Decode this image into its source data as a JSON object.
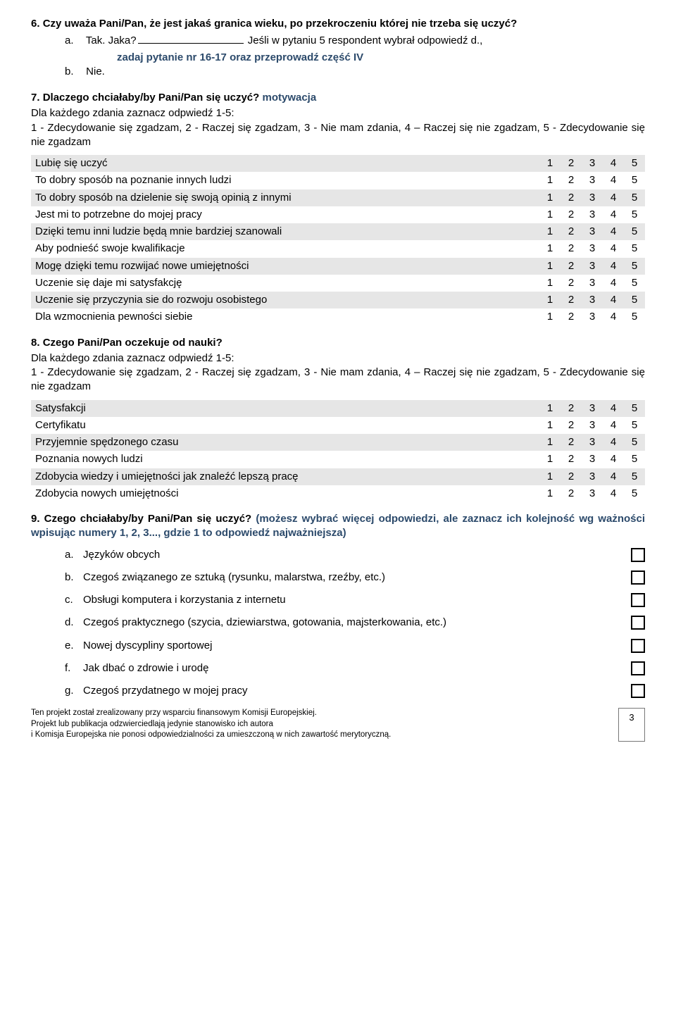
{
  "q6": {
    "num": "6.",
    "text_bold": "Czy uważa Pani/Pan, że jest jakaś granica wieku, po przekroczeniu której nie trzeba się uczyć?",
    "a_letter": "a.",
    "a_text": "Tak. Jaka?",
    "a_accent": " Jeśli w pytaniu 5 respondent wybrał odpowiedź d.,",
    "a_accent2": "zadaj pytanie nr 16-17 oraz przeprowadź część IV",
    "b_letter": "b.",
    "b_text": "Nie."
  },
  "q7": {
    "num": "7.",
    "title": "Dlaczego chciałaby/by Pani/Pan się uczyć?",
    "mot": "motywacja",
    "instr1": "Dla każdego zdania zaznacz odpwiedź 1-5:",
    "instr2": "1 - Zdecydowanie się zgadzam, 2 - Raczej się zgadzam,  3 - Nie mam zdania, 4 – Raczej się nie zgadzam, 5 - Zdecydowanie się nie zgadzam",
    "scale": [
      "1",
      "2",
      "3",
      "4",
      "5"
    ],
    "rows": [
      {
        "label": "Lubię się uczyć",
        "shaded": true
      },
      {
        "label": "To dobry sposób na poznanie innych ludzi",
        "shaded": false
      },
      {
        "label": "To dobry sposób na dzielenie się swoją opinią z innymi",
        "shaded": true
      },
      {
        "label": "Jest mi to potrzebne do mojej pracy",
        "shaded": false
      },
      {
        "label": "Dzięki temu inni ludzie będą mnie bardziej szanowali",
        "shaded": true
      },
      {
        "label": "Aby podnieść swoje kwalifikacje",
        "shaded": false
      },
      {
        "label": "Mogę dzięki temu rozwijać nowe umiejętności",
        "shaded": true
      },
      {
        "label": "Uczenie się daje mi satysfakcję",
        "shaded": false
      },
      {
        "label": "Uczenie się przyczynia sie do rozwoju osobistego",
        "shaded": true
      },
      {
        "label": "Dla wzmocnienia pewności siebie",
        "shaded": false
      }
    ],
    "colors": {
      "shaded_bg": "#e6e6e6"
    }
  },
  "q8": {
    "num": "8.",
    "title": "Czego Pani/Pan oczekuje od nauki?",
    "instr1": "Dla każdego zdania zaznacz odpwiedź 1-5:",
    "instr2": "1 - Zdecydowanie się zgadzam, 2 - Raczej się zgadzam,  3 - Nie mam zdania, 4 – Raczej się nie zgadzam, 5 - Zdecydowanie się nie zgadzam",
    "scale": [
      "1",
      "2",
      "3",
      "4",
      "5"
    ],
    "rows": [
      {
        "label": "Satysfakcji",
        "shaded": true
      },
      {
        "label": "Certyfikatu",
        "shaded": false
      },
      {
        "label": "Przyjemnie spędzonego czasu",
        "shaded": true
      },
      {
        "label": "Poznania nowych ludzi",
        "shaded": false
      },
      {
        "label": "Zdobycia wiedzy i umiejętności jak znaleźć lepszą pracę",
        "shaded": true
      },
      {
        "label": "Zdobycia nowych umiejętności",
        "shaded": false
      }
    ]
  },
  "q9": {
    "num": "9.",
    "title": "Czego chciałaby/by Pani/Pan się uczyć?",
    "accent": "(możesz wybrać więcej odpowiedzi, ale zaznacz ich kolejność wg ważności wpisując numery 1, 2, 3..., gdzie 1 to odpowiedź najważniejsza)",
    "options": [
      {
        "letter": "a.",
        "text": "Języków obcych"
      },
      {
        "letter": "b.",
        "text": "Czegoś związanego ze sztuką (rysunku, malarstwa, rzeźby, etc.)"
      },
      {
        "letter": "c.",
        "text": "Obsługi komputera i korzystania z internetu"
      },
      {
        "letter": "d.",
        "text": "Czegoś praktycznego (szycia, dziewiarstwa, gotowania, majsterkowania, etc.)"
      },
      {
        "letter": "e.",
        "text": "Nowej dyscypliny sportowej"
      },
      {
        "letter": "f.",
        "text": "Jak dbać o zdrowie i urodę"
      },
      {
        "letter": "g.",
        "text": "Czegoś przydatnego w mojej pracy"
      }
    ]
  },
  "footer": {
    "l1": "Ten projekt został zrealizowany przy wsparciu finansowym Komisji Europejskiej.",
    "l2": "Projekt lub publikacja odzwierciedlają jedynie stanowisko ich autora",
    "l3": "i Komisja Europejska nie ponosi odpowiedzialności za umieszczoną w nich zawartość merytoryczną.",
    "page": "3"
  },
  "colors": {
    "accent": "#2c4a6b",
    "text": "#000000",
    "shaded_row": "#e6e6e6",
    "background": "#ffffff"
  }
}
